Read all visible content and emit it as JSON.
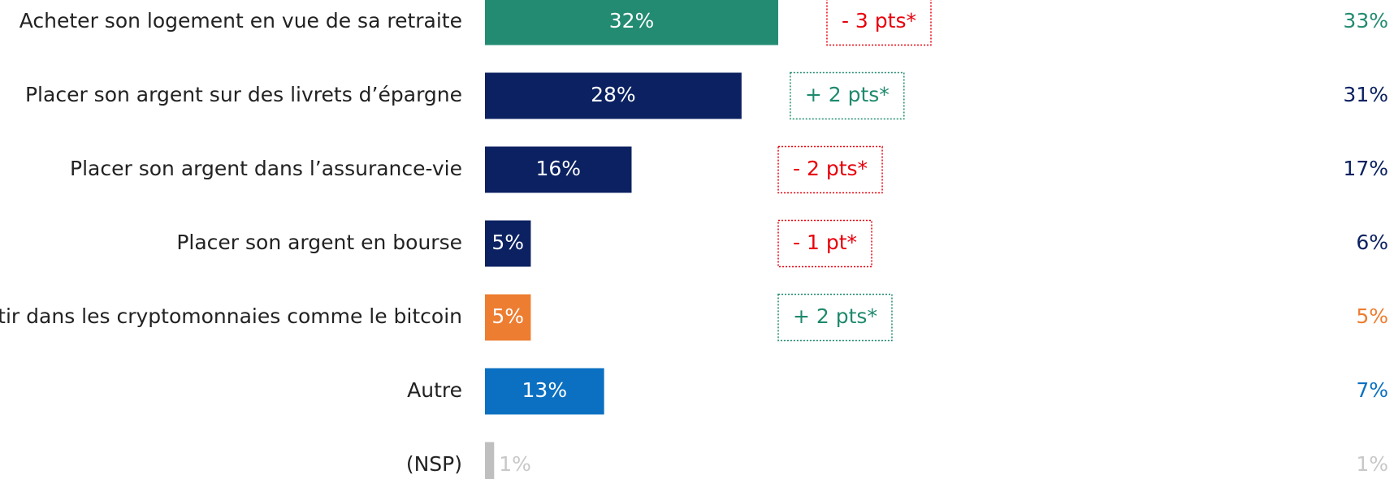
{
  "chart_data": {
    "type": "bar",
    "orientation": "horizontal",
    "categories": [
      "Acheter son logement en vue de sa retraite",
      "Placer son argent sur des livrets d’épargne",
      "Placer son argent dans l’assurance-vie",
      "Placer son argent en bourse",
      "Investir dans les cryptomonnaies comme le bitcoin",
      "Autre",
      "(NSP)"
    ],
    "values": [
      32,
      28,
      16,
      5,
      5,
      13,
      1
    ],
    "value_labels": [
      "32%",
      "28%",
      "16%",
      "5%",
      "5%",
      "13%",
      "1%"
    ],
    "colors": [
      "#238b72",
      "#0b2161",
      "#0b2161",
      "#0b2161",
      "#ed7d31",
      "#0b70c1",
      "#bfbfbf"
    ],
    "annotations": [
      "- 3 pts*",
      "+ 2 pts*",
      "- 2 pts*",
      "- 1 pt*",
      "+ 2 pts*",
      null,
      null
    ],
    "annotation_colors": [
      "#e8000b",
      "#1f8a6d",
      "#e8000b",
      "#e8000b",
      "#1f8a6d",
      null,
      null
    ],
    "comparison_values": [
      33,
      31,
      17,
      6,
      5,
      7,
      1
    ],
    "comparison_labels": [
      "33%",
      "31%",
      "17%",
      "6%",
      "5%",
      "7%",
      "1%"
    ]
  }
}
